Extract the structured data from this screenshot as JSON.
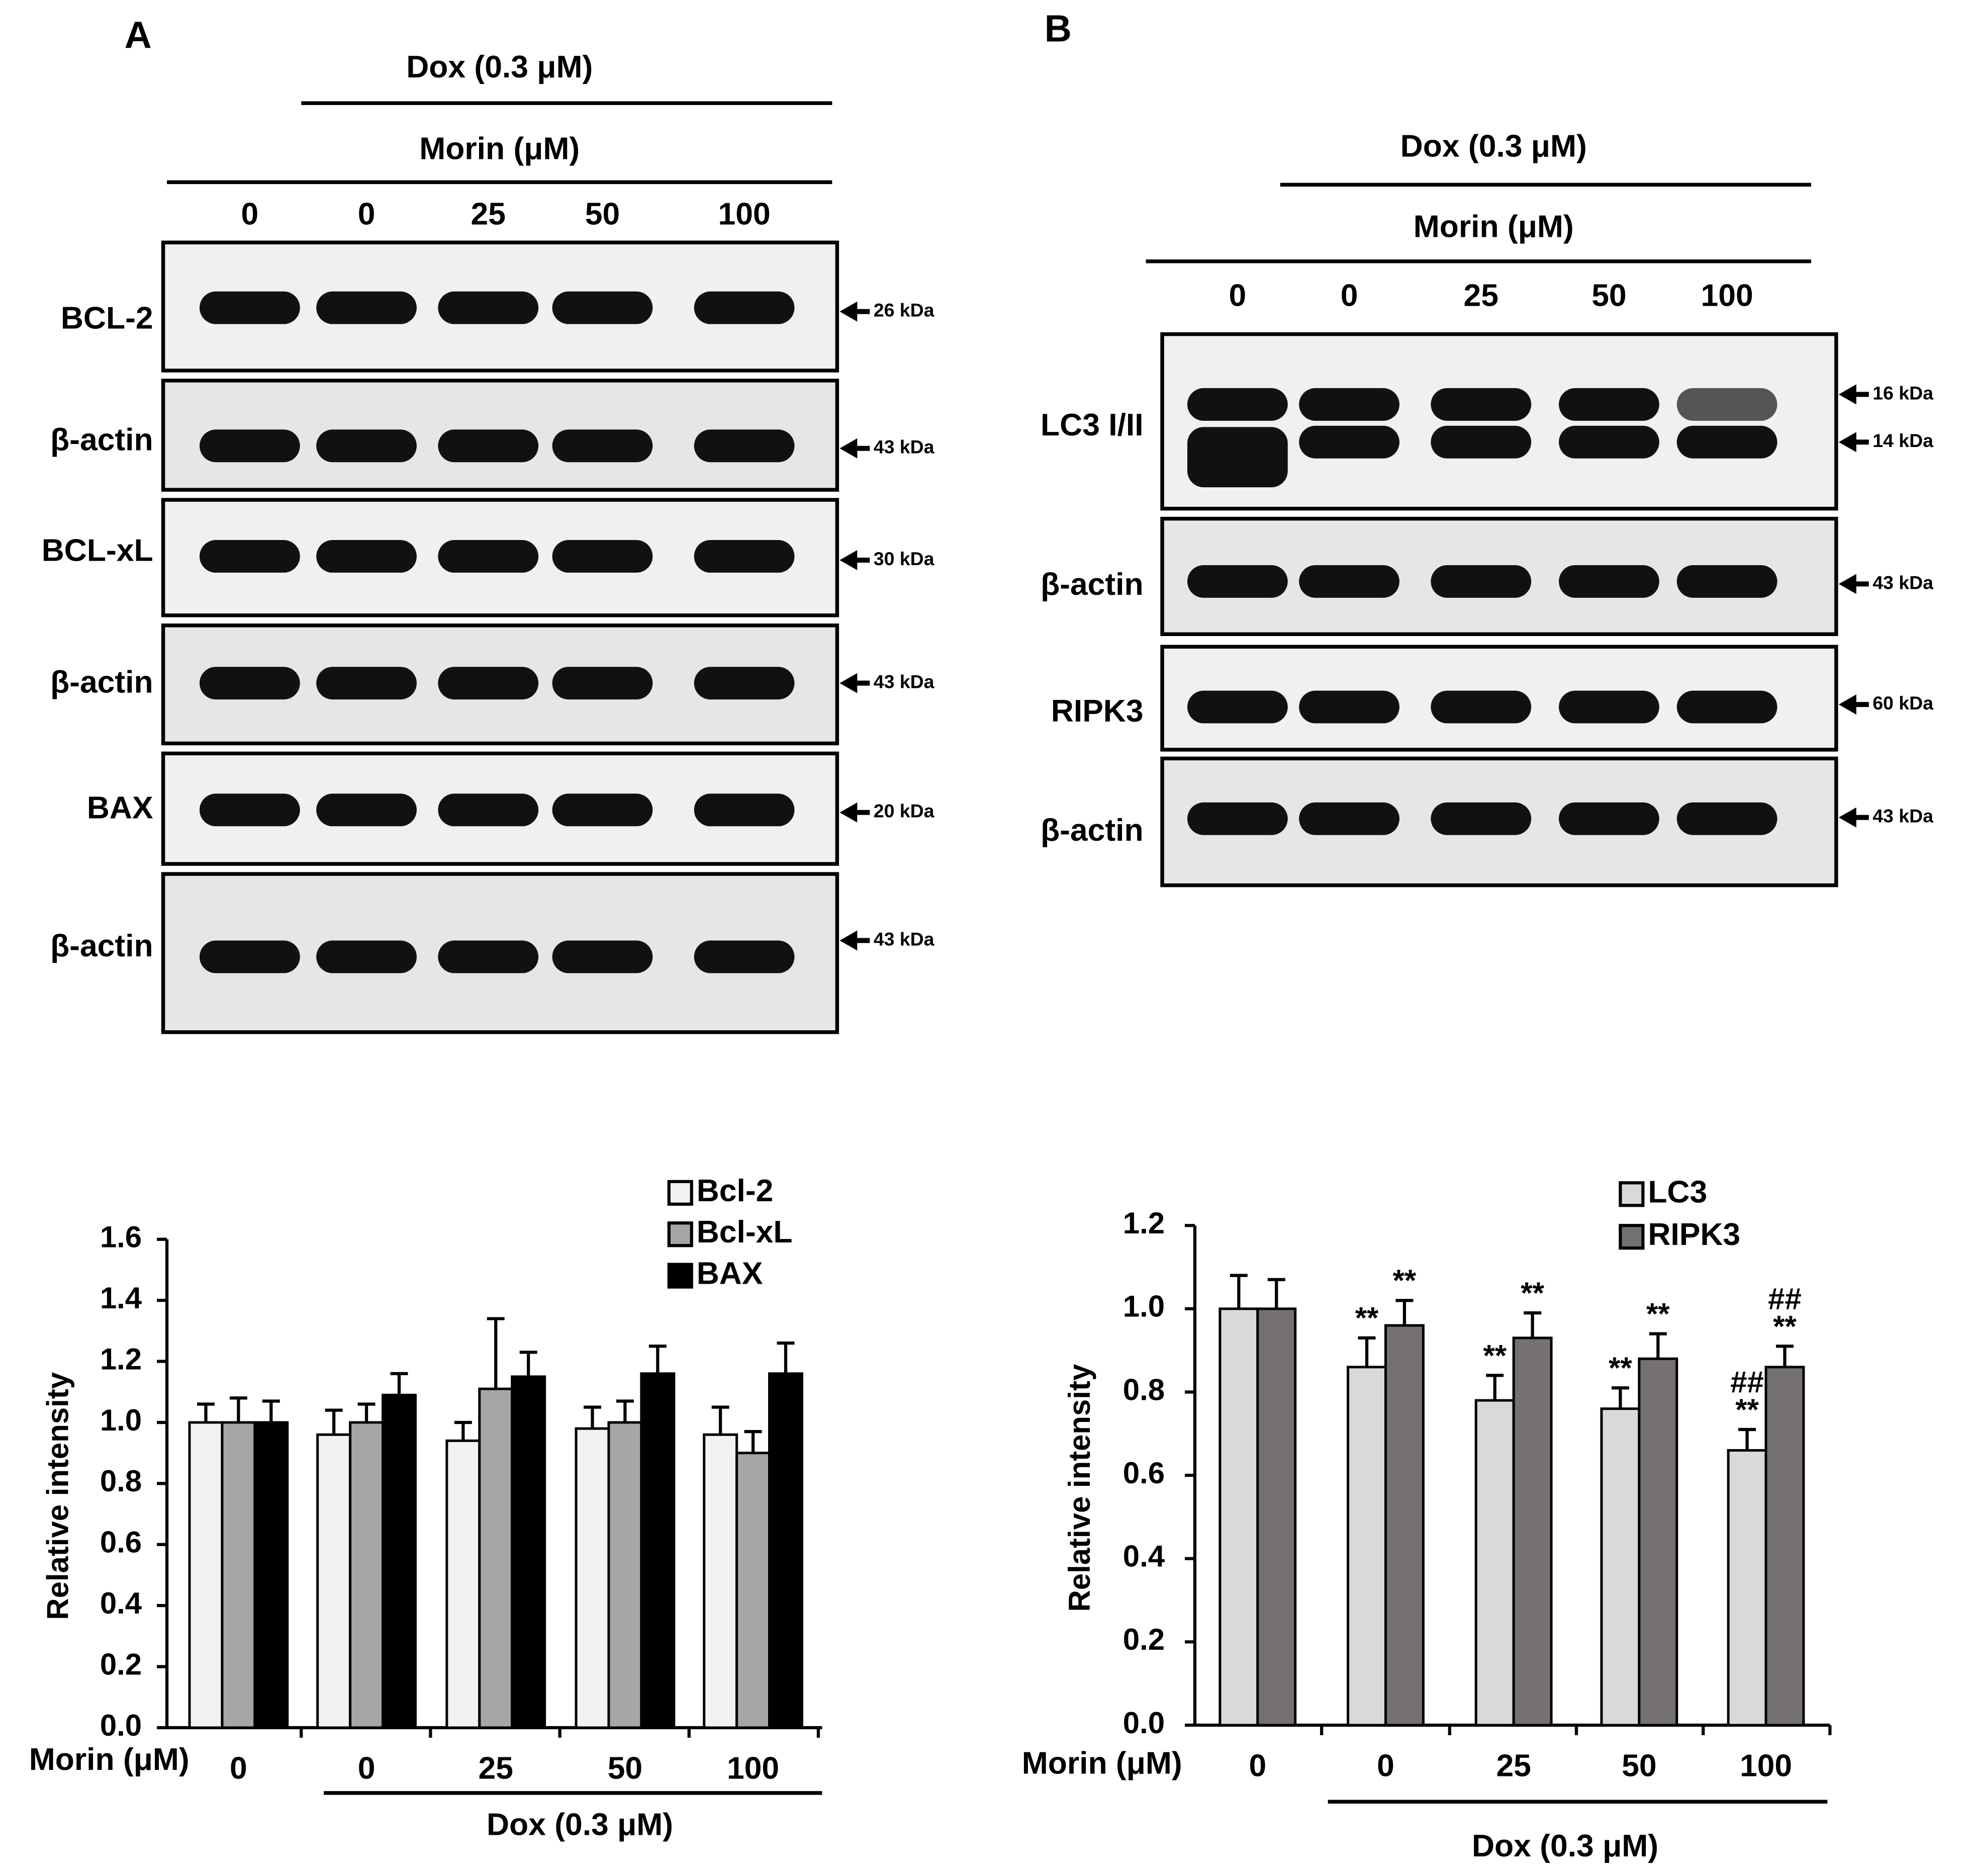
{
  "panels": [
    {
      "letter": "A",
      "dox": "Dox (0.3 μM)",
      "morin": "Morin (μM)",
      "lanes": [
        "0",
        "0",
        "25",
        "50",
        "100"
      ],
      "rows": [
        {
          "label": "BCL-2",
          "kda": [
            "26 kDa"
          ]
        },
        {
          "label": "β-actin",
          "kda": [
            "43 kDa"
          ]
        },
        {
          "label": "BCL-xL",
          "kda": [
            "30 kDa"
          ]
        },
        {
          "label": "β-actin",
          "kda": [
            "43 kDa"
          ]
        },
        {
          "label": "BAX",
          "kda": [
            "20 kDa"
          ]
        },
        {
          "label": "β-actin",
          "kda": [
            "43 kDa"
          ]
        }
      ]
    },
    {
      "letter": "B",
      "dox": "Dox (0.3 μM)",
      "morin": "Morin (μM)",
      "lanes": [
        "0",
        "0",
        "25",
        "50",
        "100"
      ],
      "rows": [
        {
          "label": "LC3 I/II",
          "kda": [
            "16 kDa",
            "14 kDa"
          ]
        },
        {
          "label": "β-actin",
          "kda": [
            "43 kDa"
          ]
        },
        {
          "label": "RIPK3",
          "kda": [
            "60 kDa"
          ]
        },
        {
          "label": "β-actin",
          "kda": [
            "43 kDa"
          ]
        }
      ]
    }
  ],
  "chart_data": [
    {
      "type": "bar",
      "ylabel": "Relative intensity",
      "xlabel": "Morin (μM)",
      "group_label": "Dox (0.3 μM)",
      "categories": [
        "0",
        "0",
        "25",
        "50",
        "100"
      ],
      "ylim": [
        0,
        1.6
      ],
      "yticks": [
        {
          "value": 0,
          "label": "0.0"
        },
        0.2,
        0.4,
        0.6,
        0.8,
        {
          "value": 1,
          "label": "1.0"
        },
        1.2,
        1.4,
        1.6
      ],
      "series": [
        {
          "name": "Bcl-2",
          "color": "#f2f2f2",
          "values": [
            1.0,
            0.96,
            0.94,
            0.98,
            0.96
          ],
          "errors": [
            0.06,
            0.08,
            0.06,
            0.07,
            0.09
          ]
        },
        {
          "name": "Bcl-xL",
          "color": "#a6a6a6",
          "values": [
            1.0,
            1.0,
            1.11,
            1.0,
            0.9
          ],
          "errors": [
            0.08,
            0.06,
            0.23,
            0.07,
            0.07
          ]
        },
        {
          "name": "BAX",
          "color": "#000000",
          "values": [
            1.0,
            1.09,
            1.15,
            1.16,
            1.16
          ],
          "errors": [
            0.07,
            0.07,
            0.08,
            0.09,
            0.1
          ]
        }
      ]
    },
    {
      "type": "bar",
      "ylabel": "Relative intensity",
      "xlabel": "Morin (μM)",
      "group_label": "Dox (0.3 μM)",
      "categories": [
        "0",
        "0",
        "25",
        "50",
        "100"
      ],
      "ylim": [
        0,
        1.2
      ],
      "yticks": [
        {
          "value": 0,
          "label": "0.0"
        },
        0.2,
        0.4,
        0.6,
        0.8,
        {
          "value": 1,
          "label": "1.0"
        },
        1.2
      ],
      "series": [
        {
          "name": "LC3",
          "color": "#d9d9d9",
          "values": [
            1.0,
            0.86,
            0.78,
            0.76,
            0.66
          ],
          "errors": [
            0.08,
            0.07,
            0.06,
            0.05,
            0.05
          ],
          "annotations": [
            null,
            "**",
            "**",
            "**",
            "**"
          ],
          "annotations_2": [
            null,
            null,
            null,
            null,
            "##"
          ]
        },
        {
          "name": "RIPK3",
          "color": "#767171",
          "values": [
            1.0,
            0.96,
            0.93,
            0.88,
            0.86
          ],
          "errors": [
            0.07,
            0.06,
            0.06,
            0.06,
            0.05
          ],
          "annotations": [
            null,
            "**",
            "**",
            "**",
            "**"
          ],
          "annotations_2": [
            null,
            null,
            null,
            null,
            "##"
          ]
        }
      ]
    }
  ]
}
